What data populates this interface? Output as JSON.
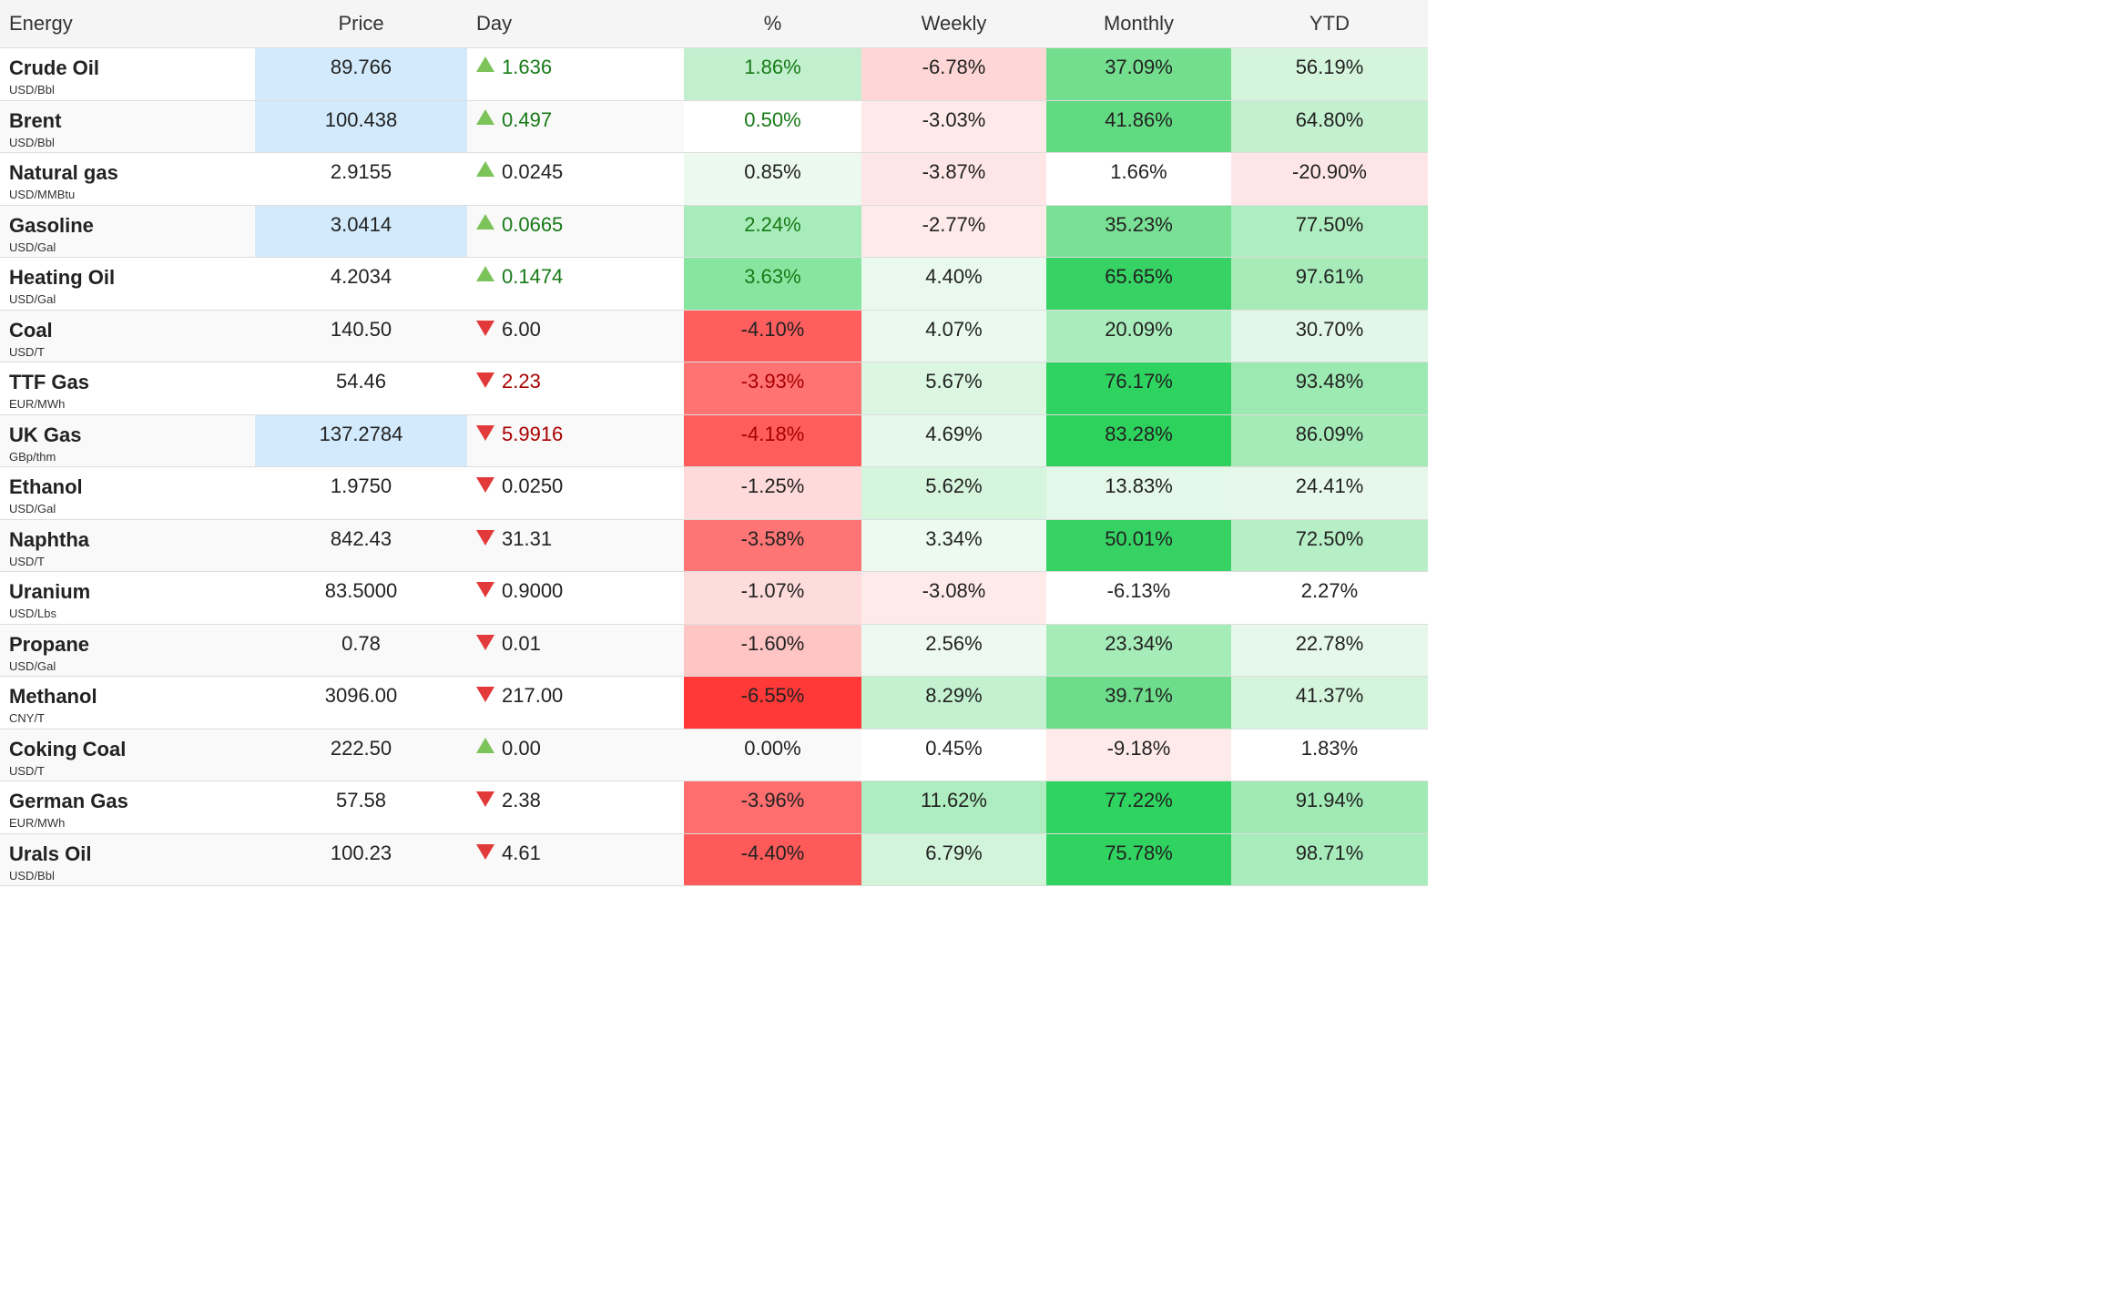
{
  "headers": {
    "name": "Energy",
    "price": "Price",
    "day": "Day",
    "pct": "%",
    "weekly": "Weekly",
    "monthly": "Monthly",
    "ytd": "YTD"
  },
  "rows": [
    {
      "name": "Crude Oil",
      "unit": "USD/Bbl",
      "price": "89.766",
      "day": "1.636",
      "dir": "up",
      "day_color": "green",
      "price_hl": true,
      "pct": "1.86%",
      "pct_color": "green",
      "weekly": "-6.78%",
      "monthly": "37.09%",
      "ytd": "56.19%",
      "bg": {
        "pct": "#c2f0cf",
        "weekly": "#ffd6d6",
        "monthly": "#72de8e",
        "ytd": "#d4f5dc"
      }
    },
    {
      "name": "Brent",
      "unit": "USD/Bbl",
      "price": "100.438",
      "day": "0.497",
      "dir": "up",
      "day_color": "green",
      "price_hl": true,
      "pct": "0.50%",
      "pct_color": "green",
      "weekly": "-3.03%",
      "monthly": "41.86%",
      "ytd": "64.80%",
      "bg": {
        "pct": "#ffffff",
        "weekly": "#ffe9e9",
        "monthly": "#62da82",
        "ytd": "#c3f0cf"
      }
    },
    {
      "name": "Natural gas",
      "unit": "USD/MMBtu",
      "price": "2.9155",
      "day": "0.0245",
      "dir": "up",
      "day_color": "dark",
      "price_hl": false,
      "pct": "0.85%",
      "pct_color": "dark",
      "weekly": "-3.87%",
      "monthly": "1.66%",
      "ytd": "-20.90%",
      "bg": {
        "pct": "#ebf9ee",
        "weekly": "#ffe6e6",
        "monthly": "#ffffff",
        "ytd": "#ffe6e6"
      }
    },
    {
      "name": "Gasoline",
      "unit": "USD/Gal",
      "price": "3.0414",
      "day": "0.0665",
      "dir": "up",
      "day_color": "green",
      "price_hl": true,
      "pct": "2.24%",
      "pct_color": "green",
      "weekly": "-2.77%",
      "monthly": "35.23%",
      "ytd": "77.50%",
      "bg": {
        "pct": "#a9ecbb",
        "weekly": "#ffeaea",
        "monthly": "#79e095",
        "ytd": "#aeedbf"
      }
    },
    {
      "name": "Heating Oil",
      "unit": "USD/Gal",
      "price": "4.2034",
      "day": "0.1474",
      "dir": "up",
      "day_color": "green",
      "price_hl": false,
      "pct": "3.63%",
      "pct_color": "green",
      "weekly": "4.40%",
      "monthly": "65.65%",
      "ytd": "97.61%",
      "bg": {
        "pct": "#88e5a0",
        "weekly": "#e9f9ed",
        "monthly": "#36d364",
        "ytd": "#a7ebb9"
      }
    },
    {
      "name": "Coal",
      "unit": "USD/T",
      "price": "140.50",
      "day": "6.00",
      "dir": "down",
      "day_color": "dark",
      "price_hl": false,
      "pct": "-4.10%",
      "pct_color": "dark",
      "weekly": "4.07%",
      "monthly": "20.09%",
      "ytd": "30.70%",
      "bg": {
        "pct": "#ff5e5e",
        "weekly": "#eafaee",
        "monthly": "#aaedbc",
        "ytd": "#e2f7e7"
      }
    },
    {
      "name": "TTF Gas",
      "unit": "EUR/MWh",
      "price": "54.46",
      "day": "2.23",
      "dir": "down",
      "day_color": "red",
      "price_hl": false,
      "pct": "-3.93%",
      "pct_color": "red",
      "weekly": "5.67%",
      "monthly": "76.17%",
      "ytd": "93.48%",
      "bg": {
        "pct": "#ff7373",
        "weekly": "#dbf6e1",
        "monthly": "#2fd35f",
        "ytd": "#9de9b2"
      }
    },
    {
      "name": "UK Gas",
      "unit": "GBp/thm",
      "price": "137.2784",
      "day": "5.9916",
      "dir": "down",
      "day_color": "red",
      "price_hl": true,
      "pct": "-4.18%",
      "pct_color": "red",
      "weekly": "4.69%",
      "monthly": "83.28%",
      "ytd": "86.09%",
      "bg": {
        "pct": "#ff5c5c",
        "weekly": "#e5f8ea",
        "monthly": "#2dd25d",
        "ytd": "#a5ebb8"
      }
    },
    {
      "name": "Ethanol",
      "unit": "USD/Gal",
      "price": "1.9750",
      "day": "0.0250",
      "dir": "down",
      "day_color": "dark",
      "price_hl": false,
      "pct": "-1.25%",
      "pct_color": "dark",
      "weekly": "5.62%",
      "monthly": "13.83%",
      "ytd": "24.41%",
      "bg": {
        "pct": "#ffdada",
        "weekly": "#d6f5dd",
        "monthly": "#e3f8e8",
        "ytd": "#e6f8eb"
      }
    },
    {
      "name": "Naphtha",
      "unit": "USD/T",
      "price": "842.43",
      "day": "31.31",
      "dir": "down",
      "day_color": "dark",
      "price_hl": false,
      "pct": "-3.58%",
      "pct_color": "dark",
      "weekly": "3.34%",
      "monthly": "50.01%",
      "ytd": "72.50%",
      "bg": {
        "pct": "#ff7575",
        "weekly": "#ecfaef",
        "monthly": "#36d364",
        "ytd": "#b6eec5"
      }
    },
    {
      "name": "Uranium",
      "unit": "USD/Lbs",
      "price": "83.5000",
      "day": "0.9000",
      "dir": "down",
      "day_color": "dark",
      "price_hl": false,
      "pct": "-1.07%",
      "pct_color": "dark",
      "weekly": "-3.08%",
      "monthly": "-6.13%",
      "ytd": "2.27%",
      "bg": {
        "pct": "#ffdcdc",
        "weekly": "#ffeaea",
        "monthly": "#ffffff",
        "ytd": "#ffffff"
      }
    },
    {
      "name": "Propane",
      "unit": "USD/Gal",
      "price": "0.78",
      "day": "0.01",
      "dir": "down",
      "day_color": "dark",
      "price_hl": false,
      "pct": "-1.60%",
      "pct_color": "dark",
      "weekly": "2.56%",
      "monthly": "23.34%",
      "ytd": "22.78%",
      "bg": {
        "pct": "#ffc4c4",
        "weekly": "#eefaf1",
        "monthly": "#a6ecb8",
        "ytd": "#e6f8eb"
      }
    },
    {
      "name": "Methanol",
      "unit": "CNY/T",
      "price": "3096.00",
      "day": "217.00",
      "dir": "down",
      "day_color": "dark",
      "price_hl": false,
      "pct": "-6.55%",
      "pct_color": "dark",
      "weekly": "8.29%",
      "monthly": "39.71%",
      "ytd": "41.37%",
      "bg": {
        "pct": "#ff3838",
        "weekly": "#c4f1d0",
        "monthly": "#6edd8b",
        "ytd": "#d4f5dc"
      }
    },
    {
      "name": "Coking Coal",
      "unit": "USD/T",
      "price": "222.50",
      "day": "0.00",
      "dir": "up",
      "day_color": "dark",
      "price_hl": false,
      "pct": "0.00%",
      "pct_color": "dark",
      "weekly": "0.45%",
      "monthly": "-9.18%",
      "ytd": "1.83%",
      "bg": {
        "pct": "#f9f9f9",
        "weekly": "#ffffff",
        "monthly": "#ffeaea",
        "ytd": "#ffffff"
      }
    },
    {
      "name": "German Gas",
      "unit": "EUR/MWh",
      "price": "57.58",
      "day": "2.38",
      "dir": "down",
      "day_color": "dark",
      "price_hl": false,
      "pct": "-3.96%",
      "pct_color": "dark",
      "weekly": "11.62%",
      "monthly": "77.22%",
      "ytd": "91.94%",
      "bg": {
        "pct": "#ff6e6e",
        "weekly": "#aeedbf",
        "monthly": "#2fd35f",
        "ytd": "#a1eab5"
      }
    },
    {
      "name": "Urals Oil",
      "unit": "USD/Bbl",
      "price": "100.23",
      "day": "4.61",
      "dir": "down",
      "day_color": "dark",
      "price_hl": false,
      "pct": "-4.40%",
      "pct_color": "dark",
      "weekly": "6.79%",
      "monthly": "75.78%",
      "ytd": "98.71%",
      "bg": {
        "pct": "#ff5a5a",
        "weekly": "#d2f4da",
        "monthly": "#30d35f",
        "ytd": "#a9ecbb"
      }
    }
  ],
  "colors": {
    "price_highlight": "#d2eafb",
    "arrow_up": "#7cc35a",
    "arrow_down": "#e23a3a",
    "text_green": "#177a17",
    "text_red": "#a80000"
  }
}
